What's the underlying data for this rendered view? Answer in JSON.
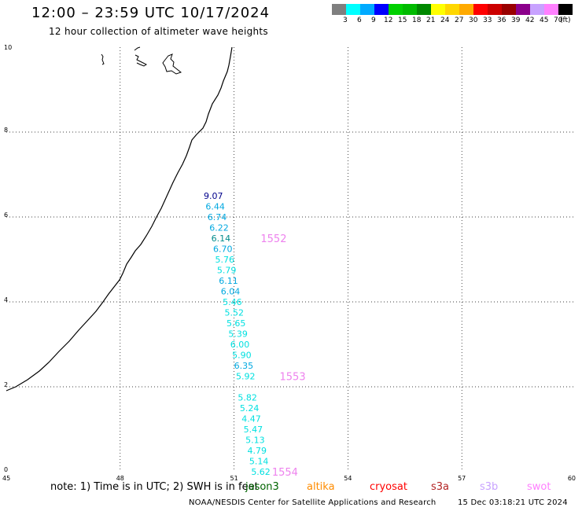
{
  "header": {
    "title": "12:00 – 23:59 UTC 10/17/2024",
    "subtitle": "12 hour collection of altimeter wave heights"
  },
  "legend": {
    "colors": [
      "#7f7f7f",
      "#00ffff",
      "#00aaff",
      "#0000ff",
      "#00d000",
      "#00bb00",
      "#008800",
      "#ffff00",
      "#ffd700",
      "#ffaa00",
      "#ff0000",
      "#cc0000",
      "#990000",
      "#8b008b",
      "#c8a2ff",
      "#ff80ff",
      "#000000"
    ],
    "ticks": [
      "3",
      "6",
      "9",
      "12",
      "15",
      "18",
      "21",
      "24",
      "27",
      "30",
      "33",
      "36",
      "39",
      "42",
      "45",
      "70"
    ],
    "unit": "(ft)"
  },
  "map": {
    "x_ticks": [
      "45",
      "48",
      "51",
      "54",
      "57",
      "60"
    ],
    "y_ticks": [
      "0",
      "2",
      "4",
      "6",
      "8",
      "10"
    ],
    "x_range": [
      45,
      60
    ],
    "y_range": [
      0,
      10
    ]
  },
  "swh_observations": [
    {
      "x": 50.2,
      "y": 6.5,
      "value": "9.07",
      "color": "#00008b"
    },
    {
      "x": 50.25,
      "y": 6.25,
      "value": "6.44",
      "color": "#00a8e0"
    },
    {
      "x": 50.3,
      "y": 6.0,
      "value": "6.74",
      "color": "#00a8e0"
    },
    {
      "x": 50.35,
      "y": 5.75,
      "value": "6.22",
      "color": "#00a8e0"
    },
    {
      "x": 50.4,
      "y": 5.5,
      "value": "6.14",
      "color": "#008b8b"
    },
    {
      "x": 50.45,
      "y": 5.25,
      "value": "6.70",
      "color": "#00a8e0"
    },
    {
      "x": 50.5,
      "y": 5.0,
      "value": "5.76",
      "color": "#00e0e0"
    },
    {
      "x": 50.55,
      "y": 4.75,
      "value": "5.79",
      "color": "#00e0e0"
    },
    {
      "x": 50.6,
      "y": 4.5,
      "value": "6.11",
      "color": "#00a8e0"
    },
    {
      "x": 50.65,
      "y": 4.25,
      "value": "6.04",
      "color": "#00a8e0"
    },
    {
      "x": 50.7,
      "y": 4.0,
      "value": "5.46",
      "color": "#00e0e0"
    },
    {
      "x": 50.75,
      "y": 3.75,
      "value": "5.52",
      "color": "#00e0e0"
    },
    {
      "x": 50.8,
      "y": 3.5,
      "value": "5.65",
      "color": "#00e0e0"
    },
    {
      "x": 50.85,
      "y": 3.25,
      "value": "5.39",
      "color": "#00e0e0"
    },
    {
      "x": 50.9,
      "y": 3.0,
      "value": "6.00",
      "color": "#00e0e0"
    },
    {
      "x": 50.95,
      "y": 2.75,
      "value": "5.90",
      "color": "#00e0e0"
    },
    {
      "x": 51.0,
      "y": 2.5,
      "value": "6.35",
      "color": "#00a8e0"
    },
    {
      "x": 51.05,
      "y": 2.25,
      "value": "5.92",
      "color": "#00e0e0"
    },
    {
      "x": 51.1,
      "y": 1.75,
      "value": "5.82",
      "color": "#00e0e0"
    },
    {
      "x": 51.15,
      "y": 1.5,
      "value": "5.24",
      "color": "#00e0e0"
    },
    {
      "x": 51.2,
      "y": 1.25,
      "value": "4.47",
      "color": "#00e0e0"
    },
    {
      "x": 51.25,
      "y": 1.0,
      "value": "5.47",
      "color": "#00e0e0"
    },
    {
      "x": 51.3,
      "y": 0.75,
      "value": "5.13",
      "color": "#00e0e0"
    },
    {
      "x": 51.35,
      "y": 0.5,
      "value": "4.79",
      "color": "#00e0e0"
    },
    {
      "x": 51.4,
      "y": 0.25,
      "value": "5.14",
      "color": "#00e0e0"
    },
    {
      "x": 51.45,
      "y": 0.0,
      "value": "5.62",
      "color": "#00e0e0"
    }
  ],
  "pass_labels": [
    {
      "x": 51.7,
      "y": 5.5,
      "text": "1552"
    },
    {
      "x": 52.2,
      "y": 2.25,
      "text": "1553"
    },
    {
      "x": 52.0,
      "y": 0.0,
      "text": "1554"
    }
  ],
  "footer": {
    "note": "note: 1) Time is in UTC; 2) SWH is in feet",
    "satellites": [
      {
        "name": "jason3",
        "color": "#006400"
      },
      {
        "name": "altika",
        "color": "#ff8c00"
      },
      {
        "name": "cryosat",
        "color": "#ff0000"
      },
      {
        "name": "s3a",
        "color": "#b22222"
      },
      {
        "name": "s3b",
        "color": "#c8a2ff"
      },
      {
        "name": "swot",
        "color": "#ff80ff"
      }
    ],
    "credit": "NOAA/NESDIS Center for Satellite Applications and Research",
    "timestamp": "15 Dec 03:18:21 UTC 2024"
  }
}
